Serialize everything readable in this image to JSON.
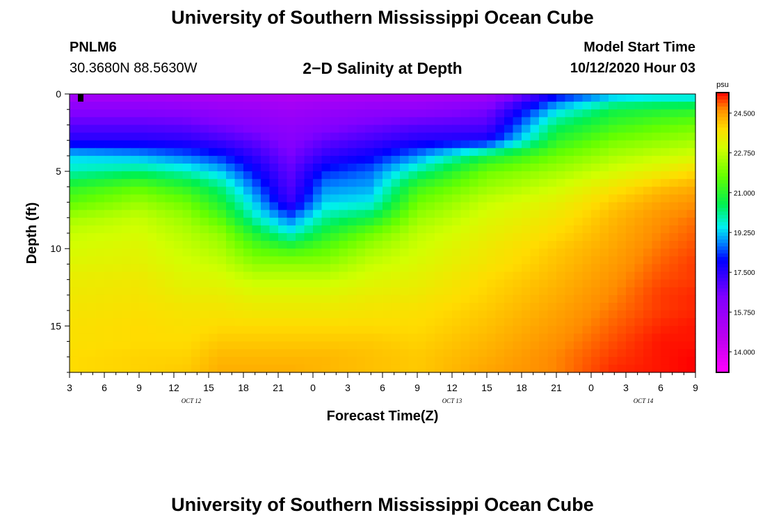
{
  "header": {
    "title": "University of Southern Mississippi Ocean Cube",
    "station": "PNLM6",
    "coords": "30.3680N 88.5630W",
    "plot_title": "2−D Salinity at Depth",
    "model_label": "Model Start Time",
    "model_time": "10/12/2020 Hour 03"
  },
  "footer": {
    "title": "University of Southern Mississippi Ocean Cube"
  },
  "chart_data": {
    "type": "heatmap",
    "title": "2-D Salinity at Depth",
    "xlabel": "Forecast Time(Z)",
    "ylabel": "Depth (ft)",
    "x_tick_labels": [
      "3",
      "6",
      "9",
      "12",
      "15",
      "18",
      "21",
      "0",
      "3",
      "6",
      "9",
      "12",
      "15",
      "18",
      "21",
      "0",
      "3",
      "6",
      "9"
    ],
    "date_labels": [
      {
        "label": "OCT 12",
        "tick_index": 3.5
      },
      {
        "label": "OCT 13",
        "tick_index": 11
      },
      {
        "label": "OCT 14",
        "tick_index": 16.5
      }
    ],
    "x_range_hours": [
      0,
      54
    ],
    "y_ticks": [
      "0",
      "5",
      "10",
      "15"
    ],
    "ylim": [
      0,
      18
    ],
    "colorbar": {
      "unit": "psu",
      "tick_labels": [
        "24.500",
        "22.750",
        "21.000",
        "19.250",
        "17.500",
        "15.750",
        "14.000"
      ],
      "tick_values": [
        24.5,
        22.75,
        21.0,
        19.25,
        17.5,
        15.75,
        14.0
      ],
      "range": [
        13.1,
        25.4
      ]
    },
    "depth_levels": [
      0,
      1,
      2,
      3,
      4,
      5,
      6,
      7,
      8,
      9,
      10,
      11,
      12,
      13,
      14,
      15,
      16,
      17,
      18
    ],
    "salinity_profiles": [
      {
        "hour": 0,
        "values": [
          15.2,
          16.2,
          16.9,
          17.6,
          19.3,
          19.8,
          21.0,
          21.6,
          22.4,
          22.8,
          23.0,
          23.2,
          23.4,
          23.5,
          23.6,
          23.7,
          23.7,
          23.8,
          23.8
        ]
      },
      {
        "hour": 6,
        "values": [
          15.2,
          16.2,
          16.9,
          17.6,
          19.0,
          20.2,
          21.6,
          22.3,
          22.8,
          23.0,
          23.2,
          23.3,
          23.5,
          23.6,
          23.7,
          23.8,
          23.8,
          23.9,
          23.9
        ]
      },
      {
        "hour": 10,
        "values": [
          15.1,
          16.1,
          16.8,
          17.5,
          18.6,
          19.8,
          21.0,
          21.8,
          22.3,
          22.6,
          22.8,
          23.0,
          23.2,
          23.4,
          23.6,
          23.7,
          23.8,
          23.9,
          24.0
        ]
      },
      {
        "hour": 13,
        "values": [
          15.0,
          15.8,
          16.5,
          17.2,
          18.2,
          19.2,
          20.2,
          20.8,
          21.5,
          22.2,
          22.5,
          22.8,
          23.1,
          23.4,
          23.6,
          23.8,
          24.0,
          24.2,
          24.3
        ]
      },
      {
        "hour": 16,
        "values": [
          15.0,
          15.7,
          16.2,
          16.8,
          17.4,
          18.0,
          18.6,
          19.2,
          19.8,
          20.8,
          21.6,
          22.2,
          22.8,
          23.2,
          23.5,
          23.8,
          24.0,
          24.2,
          24.3
        ]
      },
      {
        "hour": 19,
        "values": [
          14.9,
          15.5,
          15.9,
          16.2,
          16.5,
          16.8,
          17.0,
          17.3,
          18.6,
          19.6,
          21.2,
          22.2,
          22.8,
          23.2,
          23.5,
          23.8,
          24.0,
          24.2,
          24.3
        ]
      },
      {
        "hour": 22,
        "values": [
          15.0,
          15.7,
          16.2,
          16.8,
          17.4,
          18.2,
          18.8,
          19.3,
          20.0,
          20.8,
          21.6,
          22.2,
          22.8,
          23.2,
          23.5,
          23.8,
          24.0,
          24.2,
          24.2
        ]
      },
      {
        "hour": 26,
        "values": [
          15.1,
          15.9,
          16.6,
          17.2,
          17.9,
          18.6,
          19.0,
          19.5,
          20.6,
          21.8,
          22.4,
          22.8,
          23.1,
          23.4,
          23.6,
          23.8,
          24.0,
          24.1,
          24.1
        ]
      },
      {
        "hour": 30,
        "values": [
          15.1,
          16.0,
          16.9,
          17.6,
          18.8,
          20.0,
          21.2,
          21.8,
          22.3,
          22.7,
          22.9,
          23.1,
          23.3,
          23.5,
          23.7,
          23.8,
          23.9,
          24.0,
          24.0
        ]
      },
      {
        "hour": 36,
        "values": [
          15.3,
          16.5,
          17.0,
          17.8,
          20.6,
          21.8,
          22.3,
          22.8,
          23.1,
          23.3,
          23.5,
          23.6,
          23.8,
          23.9,
          24.0,
          24.1,
          24.2,
          24.3,
          24.4
        ]
      },
      {
        "hour": 42,
        "values": [
          17.8,
          19.3,
          20.3,
          21.0,
          21.8,
          22.4,
          22.9,
          23.3,
          23.6,
          23.8,
          24.0,
          24.1,
          24.2,
          24.3,
          24.4,
          24.5,
          24.6,
          24.7,
          24.7
        ]
      },
      {
        "hour": 47,
        "values": [
          19.0,
          20.6,
          21.2,
          21.9,
          22.5,
          23.0,
          23.6,
          24.0,
          24.2,
          24.3,
          24.4,
          24.5,
          24.6,
          24.7,
          24.8,
          24.9,
          25.0,
          25.1,
          25.2
        ]
      },
      {
        "hour": 51,
        "values": [
          19.2,
          20.8,
          21.6,
          22.2,
          22.8,
          23.4,
          24.1,
          24.4,
          24.6,
          24.7,
          24.8,
          24.9,
          25.0,
          25.1,
          25.1,
          25.2,
          25.3,
          25.3,
          25.3
        ]
      },
      {
        "hour": 54,
        "values": [
          19.2,
          20.9,
          21.8,
          22.4,
          23.0,
          23.8,
          24.3,
          24.6,
          24.8,
          24.9,
          25.0,
          25.1,
          25.1,
          25.2,
          25.2,
          25.3,
          25.3,
          25.4,
          25.4
        ]
      }
    ]
  }
}
